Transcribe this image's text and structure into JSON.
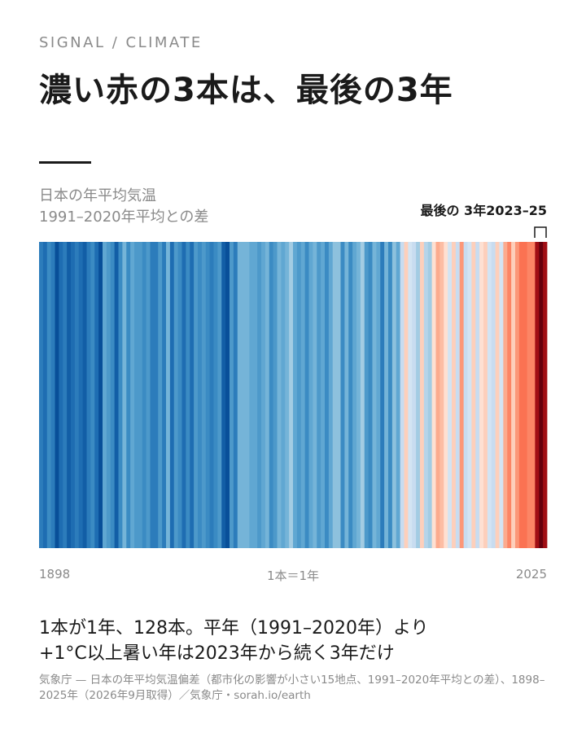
{
  "chart_data": {
    "type": "stripes",
    "kicker": "SIGNAL / CLIMATE",
    "title": "濃い赤の3本は、最後の3年",
    "subtitle": [
      "日本の年平均気温",
      "1991–2020年平均との差"
    ],
    "annotation": "最後の 3年2023–25",
    "scale_note": "1本＝1年",
    "takeaway": [
      "1本が1年、128本。平年（1991–2020年）より",
      "+1°C以上暑い年は2023年から続く3年だけ"
    ],
    "source": "気象庁 — 日本の年平均気温偏差（都市化の影響が小さい15地点、1991–2020年平均との差）、1898–2025年（2026年9月取得）／気象庁・sorah.io/earth",
    "x": [
      1898,
      1899,
      1900,
      1901,
      1902,
      1903,
      1904,
      1905,
      1906,
      1907,
      1908,
      1909,
      1910,
      1911,
      1912,
      1913,
      1914,
      1915,
      1916,
      1917,
      1918,
      1919,
      1920,
      1921,
      1922,
      1923,
      1924,
      1925,
      1926,
      1927,
      1928,
      1929,
      1930,
      1931,
      1932,
      1933,
      1934,
      1935,
      1936,
      1937,
      1938,
      1939,
      1940,
      1941,
      1942,
      1943,
      1944,
      1945,
      1946,
      1947,
      1948,
      1949,
      1950,
      1951,
      1952,
      1953,
      1954,
      1955,
      1956,
      1957,
      1958,
      1959,
      1960,
      1961,
      1962,
      1963,
      1964,
      1965,
      1966,
      1967,
      1968,
      1969,
      1970,
      1971,
      1972,
      1973,
      1974,
      1975,
      1976,
      1977,
      1978,
      1979,
      1980,
      1981,
      1982,
      1983,
      1984,
      1985,
      1986,
      1987,
      1988,
      1989,
      1990,
      1991,
      1992,
      1993,
      1994,
      1995,
      1996,
      1997,
      1998,
      1999,
      2000,
      2001,
      2002,
      2003,
      2004,
      2005,
      2006,
      2007,
      2008,
      2009,
      2010,
      2011,
      2012,
      2013,
      2014,
      2015,
      2016,
      2017,
      2018,
      2019,
      2020,
      2021,
      2022,
      2023,
      2024,
      2025
    ],
    "values": [
      -1.0,
      -1.1,
      -0.9,
      -1.0,
      -1.3,
      -1.1,
      -1.0,
      -1.2,
      -1.1,
      -1.0,
      -1.1,
      -1.2,
      -1.0,
      -0.9,
      -1.1,
      -1.3,
      -0.7,
      -0.8,
      -0.9,
      -1.2,
      -0.9,
      -0.6,
      -0.9,
      -0.7,
      -0.8,
      -0.8,
      -0.9,
      -0.8,
      -1.0,
      -1.0,
      -0.8,
      -1.0,
      -0.6,
      -1.1,
      -0.8,
      -0.9,
      -1.1,
      -0.9,
      -1.1,
      -0.8,
      -0.9,
      -0.8,
      -0.9,
      -1.0,
      -0.9,
      -0.8,
      -1.2,
      -1.3,
      -0.8,
      -1.0,
      -0.6,
      -0.6,
      -0.6,
      -0.7,
      -0.7,
      -0.8,
      -0.7,
      -0.6,
      -0.9,
      -0.8,
      -0.6,
      -0.7,
      -0.6,
      -0.4,
      -0.7,
      -0.8,
      -0.7,
      -0.9,
      -0.7,
      -0.6,
      -0.8,
      -0.7,
      -0.9,
      -0.7,
      -0.5,
      -0.5,
      -0.9,
      -0.6,
      -0.9,
      -0.7,
      -0.6,
      -0.4,
      -0.8,
      -0.9,
      -0.6,
      -0.7,
      -1.0,
      -0.6,
      -0.9,
      -0.5,
      -0.7,
      -0.2,
      0.1,
      -0.1,
      -0.2,
      -0.4,
      0.1,
      -0.3,
      -0.4,
      0.0,
      0.3,
      0.2,
      0.0,
      -0.1,
      0.1,
      -0.2,
      0.4,
      -0.2,
      -0.1,
      0.1,
      -0.2,
      0.0,
      0.1,
      -0.1,
      -0.2,
      0.1,
      -0.1,
      0.3,
      0.5,
      0.1,
      0.4,
      0.6,
      0.6,
      0.5,
      0.5,
      1.3,
      1.5,
      1.3
    ]
  }
}
